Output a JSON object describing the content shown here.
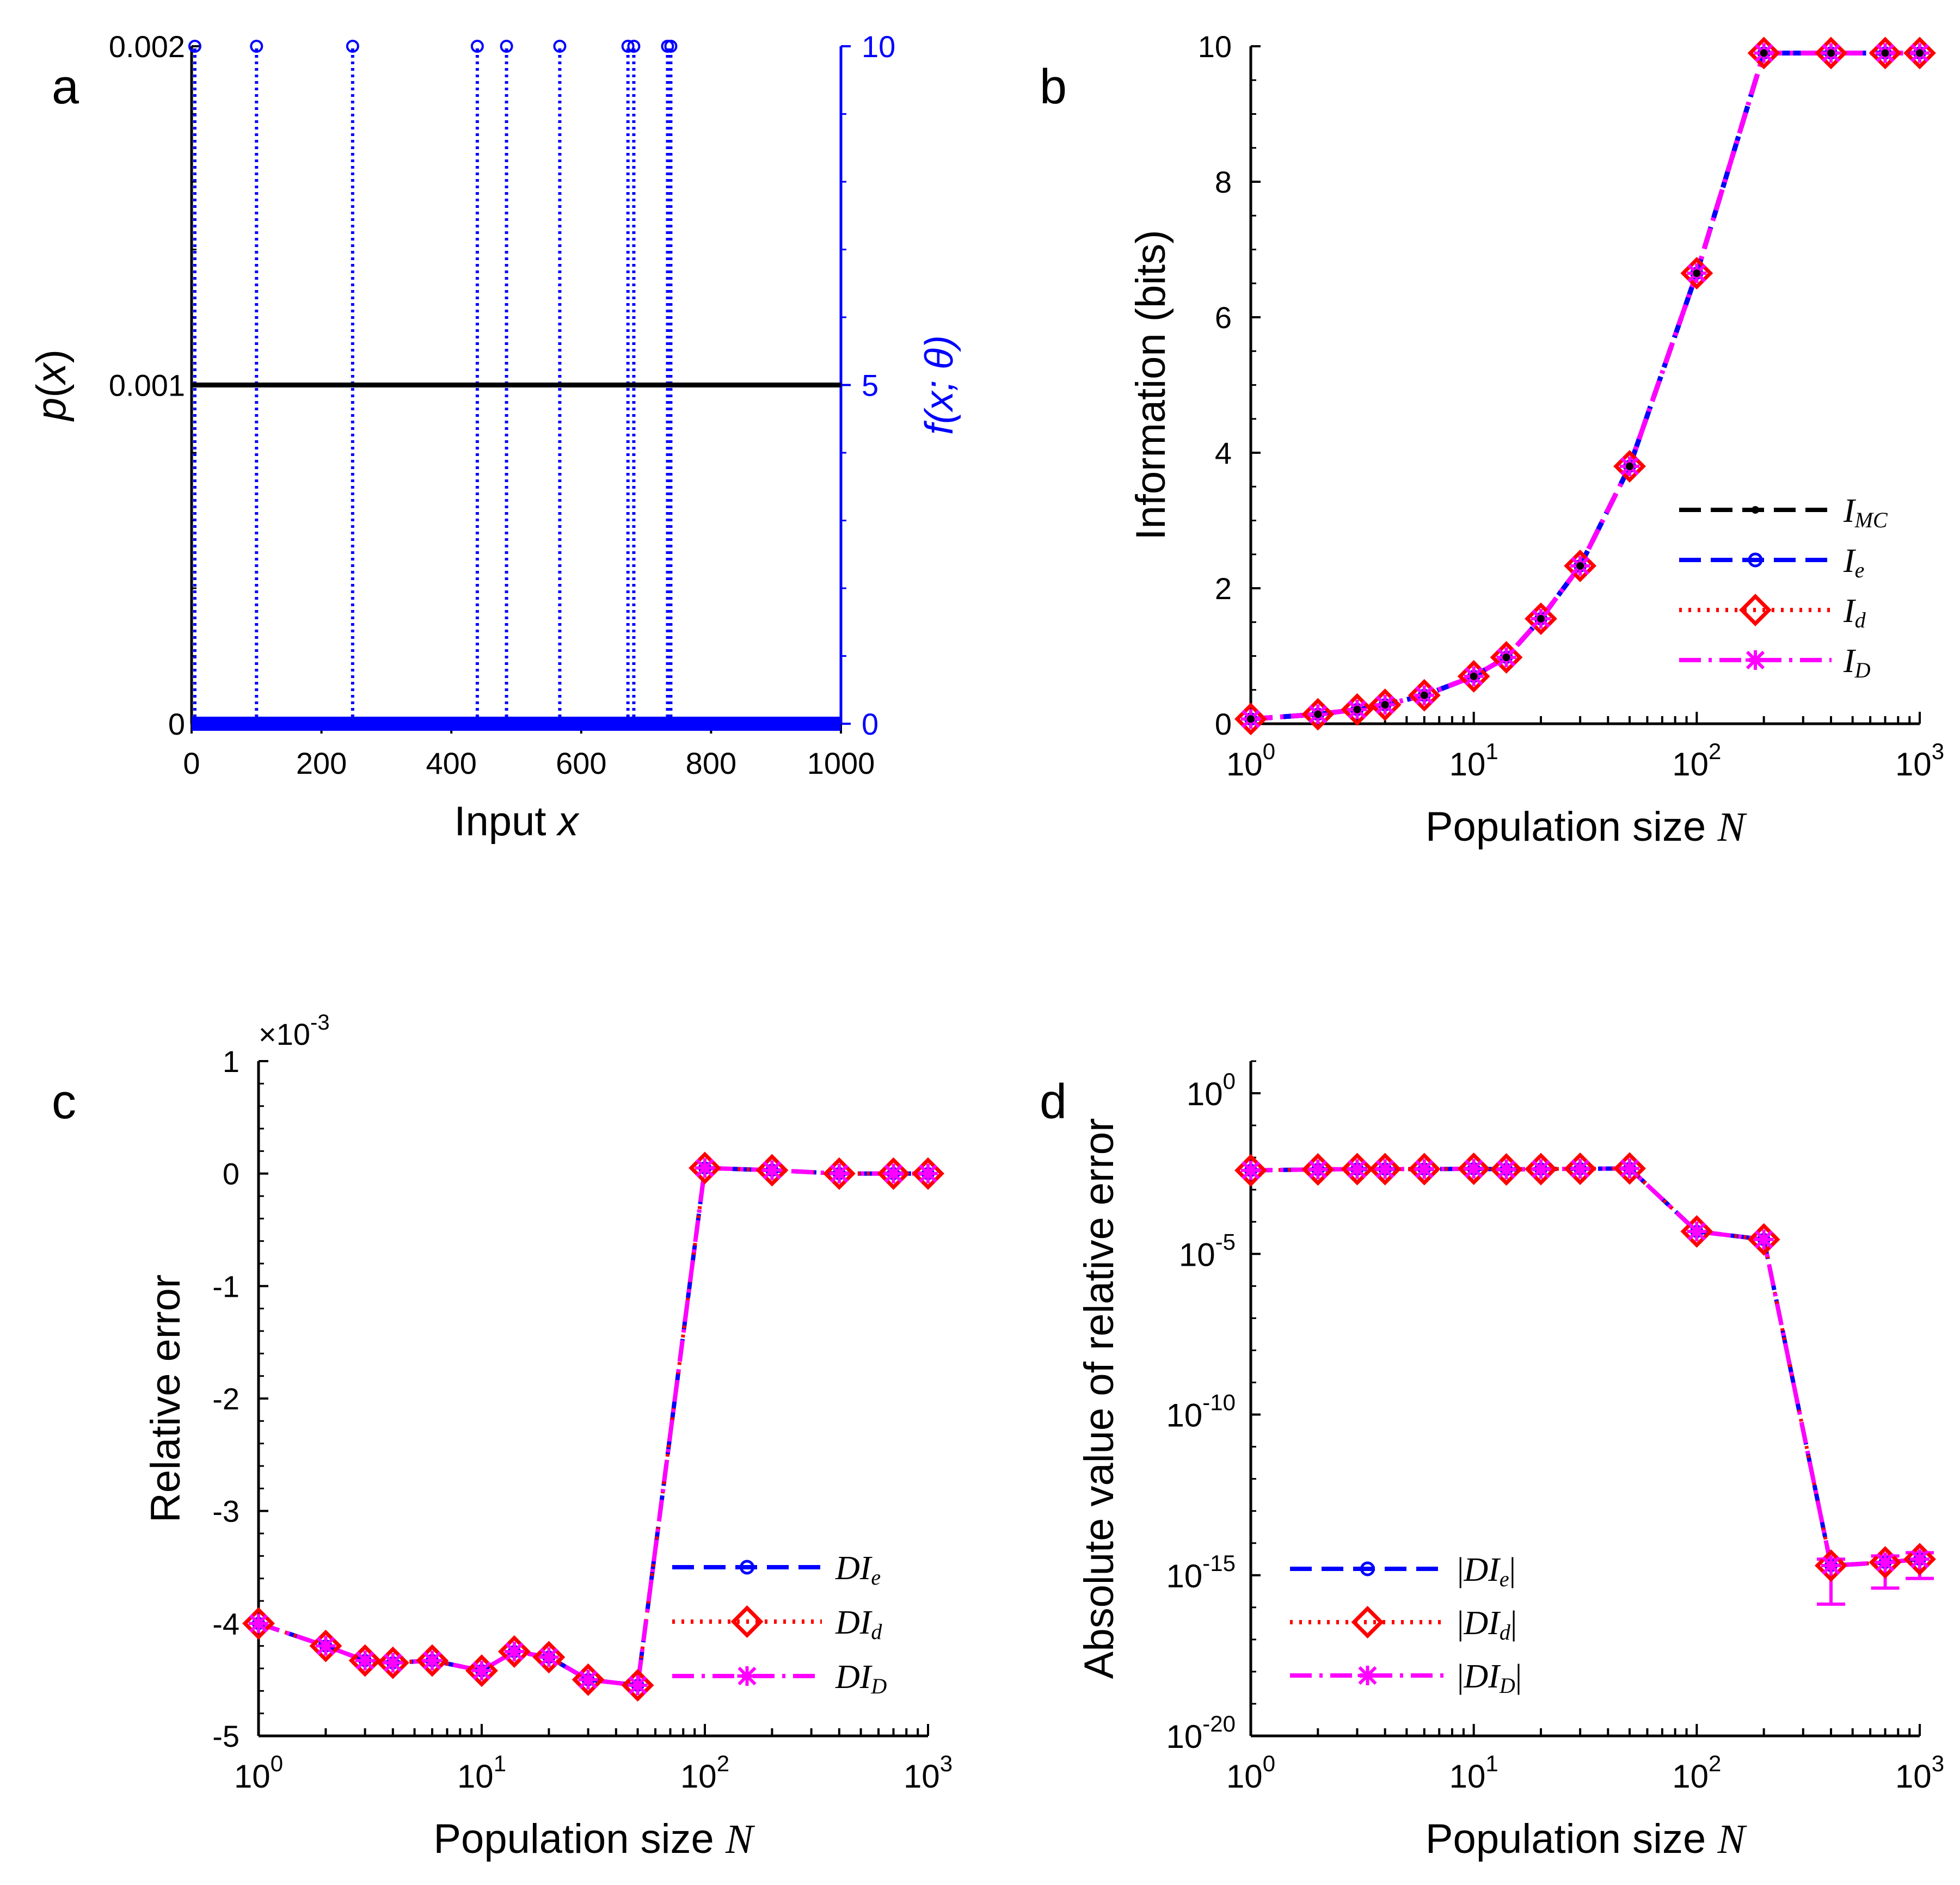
{
  "colors": {
    "black": "#000000",
    "blue": "#0000ff",
    "red": "#ff0000",
    "magenta": "#ff00ff"
  },
  "chart_data": [
    {
      "panel": "a",
      "type": "scatter",
      "panel_label": "a",
      "xlabel_text": "Input ",
      "xlabel_var": "x",
      "ylabel_left_fn": "p",
      "ylabel_left_var": "x",
      "ylabel_right": "f(x; θ)",
      "xlim": [
        0,
        1000
      ],
      "xticks": [
        0,
        200,
        400,
        600,
        800,
        1000
      ],
      "xtick_labels": [
        "0",
        "200",
        "400",
        "600",
        "800",
        "1000"
      ],
      "ylim_left": [
        0,
        0.002
      ],
      "yticks_left": [
        0,
        0.001,
        0.002
      ],
      "ytick_labels_left": [
        "0",
        "0.001",
        "0.002"
      ],
      "ylim_right": [
        0,
        10
      ],
      "yticks_right": [
        0,
        5,
        10
      ],
      "ytick_labels_right": [
        "0",
        "5",
        "10"
      ],
      "p_x": {
        "name": "p(x)",
        "value": 0.001,
        "x_range": [
          0,
          1000
        ]
      },
      "f_x": {
        "name": "f(x; θ)",
        "baseline": 0,
        "peak_value": 10,
        "peak_positions": [
          5,
          100,
          248,
          440,
          485,
          567,
          672,
          681,
          733,
          738
        ]
      }
    },
    {
      "panel": "b",
      "type": "line",
      "panel_label": "b",
      "xscale": "log",
      "xlim": [
        1,
        1000
      ],
      "xtick_base": "10",
      "xtick_exps": [
        "0",
        "1",
        "2",
        "3"
      ],
      "xlabel_text": "Population size ",
      "xlabel_var": "N",
      "ylabel": "Information (bits)",
      "ylim": [
        0,
        10
      ],
      "yticks": [
        0,
        2,
        4,
        6,
        8,
        10
      ],
      "ytick_labels": [
        "0",
        "2",
        "4",
        "6",
        "8",
        "10"
      ],
      "x": [
        1,
        2,
        3,
        4,
        6,
        10,
        14,
        20,
        30,
        50,
        100,
        200,
        400,
        700,
        1000
      ],
      "series": [
        {
          "name": "I_MC",
          "main": "I",
          "sub": "MC",
          "values": [
            0.07,
            0.14,
            0.21,
            0.28,
            0.42,
            0.7,
            0.98,
            1.55,
            2.33,
            3.8,
            6.65,
            9.9,
            9.9,
            9.9,
            9.9
          ]
        },
        {
          "name": "I_e",
          "main": "I",
          "sub": "e",
          "values": [
            0.07,
            0.14,
            0.21,
            0.28,
            0.42,
            0.7,
            0.98,
            1.55,
            2.33,
            3.8,
            6.65,
            9.9,
            9.9,
            9.9,
            9.9
          ]
        },
        {
          "name": "I_d",
          "main": "I",
          "sub": "d",
          "values": [
            0.07,
            0.14,
            0.21,
            0.28,
            0.42,
            0.7,
            0.98,
            1.55,
            2.33,
            3.8,
            6.65,
            9.9,
            9.9,
            9.9,
            9.9
          ]
        },
        {
          "name": "I_D",
          "main": "I",
          "sub": "D",
          "values": [
            0.07,
            0.14,
            0.21,
            0.28,
            0.42,
            0.7,
            0.98,
            1.55,
            2.33,
            3.8,
            6.65,
            9.9,
            9.9,
            9.9,
            9.9
          ]
        }
      ],
      "legend_position": "right"
    },
    {
      "panel": "c",
      "type": "line",
      "panel_label": "c",
      "xscale": "log",
      "xlim": [
        1,
        1000
      ],
      "xtick_base": "10",
      "xtick_exps": [
        "0",
        "1",
        "2",
        "3"
      ],
      "xlabel_text": "Population size ",
      "xlabel_var": "N",
      "ylabel": "Relative error",
      "y_multiplier": "×10",
      "y_multiplier_exp": "-3",
      "ylim": [
        -5,
        1
      ],
      "yticks": [
        -5,
        -4,
        -3,
        -2,
        -1,
        0,
        1
      ],
      "ytick_labels": [
        "-5",
        "-4",
        "-3",
        "-2",
        "-1",
        "0",
        "1"
      ],
      "x": [
        1,
        2,
        3,
        4,
        6,
        10,
        14,
        20,
        30,
        50,
        100,
        200,
        400,
        700,
        1000
      ],
      "series": [
        {
          "name": "DI_e",
          "main": "DI",
          "sub": "e",
          "values": [
            -4.0,
            -4.2,
            -4.33,
            -4.35,
            -4.33,
            -4.42,
            -4.25,
            -4.3,
            -4.5,
            -4.55,
            0.05,
            0.03,
            0.0,
            0.0,
            0.0
          ]
        },
        {
          "name": "DI_d",
          "main": "DI",
          "sub": "d",
          "values": [
            -4.0,
            -4.2,
            -4.33,
            -4.35,
            -4.33,
            -4.42,
            -4.25,
            -4.3,
            -4.5,
            -4.55,
            0.05,
            0.03,
            0.0,
            0.0,
            0.0
          ]
        },
        {
          "name": "DI_D",
          "main": "DI",
          "sub": "D",
          "values": [
            -4.0,
            -4.2,
            -4.33,
            -4.35,
            -4.33,
            -4.42,
            -4.25,
            -4.3,
            -4.5,
            -4.55,
            0.05,
            0.03,
            0.0,
            0.0,
            0.0
          ]
        }
      ],
      "legend_position": "bottom-right"
    },
    {
      "panel": "d",
      "type": "line",
      "panel_label": "d",
      "xscale": "log",
      "yscale": "log",
      "xlim": [
        1,
        1000
      ],
      "xtick_base": "10",
      "xtick_exps": [
        "0",
        "1",
        "2",
        "3"
      ],
      "xlabel_text": "Population size ",
      "xlabel_var": "N",
      "ylabel": "Absolute value of relative error",
      "ylim_exp": [
        -20,
        1
      ],
      "ytick_base": "10",
      "ytick_exps": [
        "-20",
        "-15",
        "-10",
        "-5",
        "0"
      ],
      "x": [
        1,
        2,
        3,
        4,
        6,
        10,
        14,
        20,
        30,
        50,
        100,
        200,
        400,
        700,
        1000
      ],
      "series": [
        {
          "name": "|DI_e|",
          "main": "DI",
          "sub": "e",
          "log10_values": [
            -2.4,
            -2.37,
            -2.36,
            -2.36,
            -2.36,
            -2.35,
            -2.37,
            -2.36,
            -2.35,
            -2.34,
            -4.3,
            -4.55,
            -14.7,
            -14.6,
            -14.5
          ]
        },
        {
          "name": "|DI_d|",
          "main": "DI",
          "sub": "d",
          "log10_values": [
            -2.4,
            -2.37,
            -2.36,
            -2.36,
            -2.36,
            -2.35,
            -2.37,
            -2.36,
            -2.35,
            -2.34,
            -4.3,
            -4.55,
            -14.7,
            -14.6,
            -14.5
          ]
        },
        {
          "name": "|DI_D|",
          "main": "DI",
          "sub": "D",
          "log10_values": [
            -2.4,
            -2.37,
            -2.36,
            -2.36,
            -2.36,
            -2.35,
            -2.37,
            -2.36,
            -2.35,
            -2.34,
            -4.3,
            -4.55,
            -14.7,
            -14.6,
            -14.5
          ]
        }
      ],
      "error_bars_log10": [
        {
          "x": 400,
          "low": -15.9,
          "high": -14.5
        },
        {
          "x": 700,
          "low": -15.4,
          "high": -14.4
        },
        {
          "x": 1000,
          "low": -15.1,
          "high": -14.3
        }
      ],
      "legend_position": "bottom-left"
    }
  ]
}
